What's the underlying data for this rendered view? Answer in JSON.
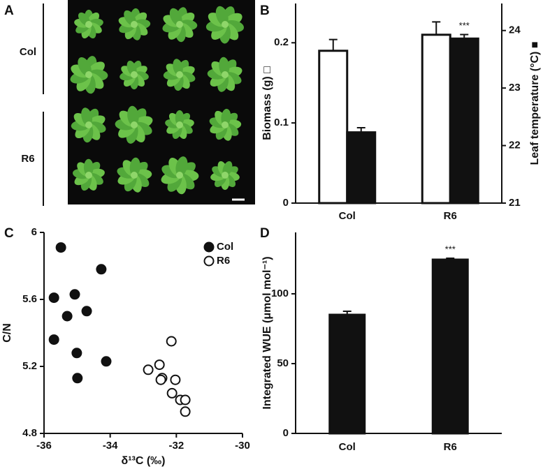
{
  "panel_labels": [
    "A",
    "B",
    "C",
    "D"
  ],
  "photo_labels": [
    "Col",
    "R6"
  ],
  "chart_data": [
    {
      "type": "bar",
      "categories": [
        "Col",
        "R6"
      ],
      "ylabel": "Biomass (g) □",
      "y2label": "Leaf temperature (°C) ■",
      "ylim": [
        0,
        0.249
      ],
      "yticks": [
        0,
        0.1,
        0.2
      ],
      "y2lim": [
        21,
        24.47
      ],
      "y2ticks": [
        21,
        22,
        23,
        24
      ],
      "series": [
        {
          "color": "#ffffff",
          "values": [
            0.19,
            0.21
          ],
          "errors": [
            0.014,
            0.016
          ]
        },
        {
          "color": "#111111",
          "axis": "y2",
          "values": [
            22.23,
            23.86
          ],
          "errors": [
            0.08,
            0.07
          ]
        }
      ],
      "annotation": "***"
    },
    {
      "type": "scatter",
      "xlabel": "δ¹³C (‰)",
      "ylabel": "C/N",
      "xlim": [
        -36,
        -30
      ],
      "xticks": [
        -36,
        -34,
        -32,
        -30
      ],
      "ylim": [
        4.8,
        6
      ],
      "yticks": [
        4.8,
        5.2,
        5.6,
        6
      ],
      "legend": "top-right",
      "series": [
        {
          "name": "Col",
          "color": "#111111",
          "x": [
            -35.49,
            -35.7,
            -35.3,
            -35.07,
            -34.71,
            -34.27,
            -35.7,
            -35.01,
            -34.12,
            -34.99
          ],
          "values": [
            5.91,
            5.61,
            5.5,
            5.63,
            5.53,
            5.78,
            5.36,
            5.28,
            5.23,
            5.13
          ]
        },
        {
          "name": "R6",
          "color": "#ffffff",
          "x": [
            -32.15,
            -32.85,
            -32.51,
            -32.43,
            -32.47,
            -32.03,
            -32.13,
            -31.88,
            -31.73,
            -31.73
          ],
          "values": [
            5.35,
            5.18,
            5.21,
            5.13,
            5.12,
            5.12,
            5.04,
            5.0,
            5.0,
            4.93
          ]
        }
      ]
    },
    {
      "type": "bar",
      "categories": [
        "Col",
        "R6"
      ],
      "ylabel": "Integrated WUE (μmol mol⁻¹)",
      "ylim": [
        0,
        144
      ],
      "yticks": [
        0,
        50,
        100
      ],
      "series": [
        {
          "color": "#111111",
          "values": [
            85,
            124.5
          ],
          "errors": [
            2.5,
            1
          ]
        }
      ],
      "annotation": "***"
    }
  ]
}
